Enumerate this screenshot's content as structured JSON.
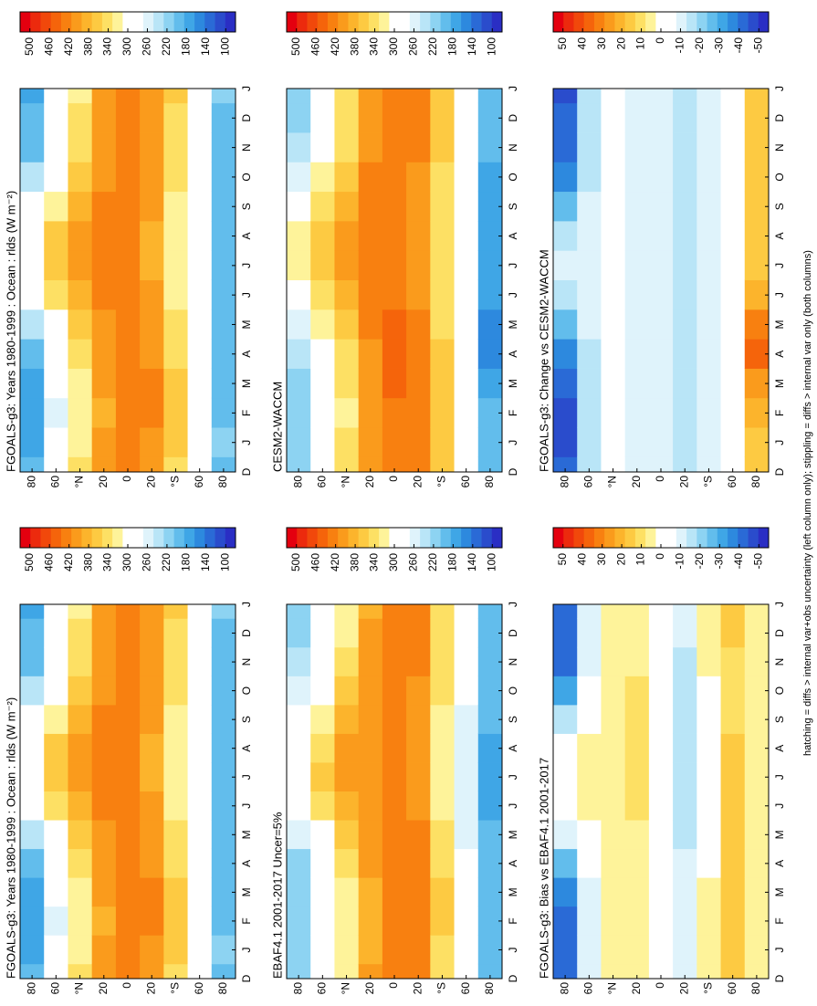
{
  "caption": "hatching = diffs > internal var+obs uncertainty (left column only); stippling = diffs > internal var only (both columns)",
  "palette": [
    "#e4000f",
    "#ec2a0d",
    "#f1480b",
    "#f5640b",
    "#f88010",
    "#fa9b1c",
    "#fcb42c",
    "#fdca42",
    "#fde064",
    "#fef39a",
    "#ffffff",
    "#ffffff",
    "#dff3fb",
    "#b9e5f7",
    "#8dd3f2",
    "#62bdec",
    "#3fa6e6",
    "#2d89de",
    "#2a6ad6",
    "#2a4ccc",
    "#2a2ec4"
  ],
  "chart_data": [
    {
      "type": "heatmap",
      "title": "FGOALS-g3: Years 1980-1999 : Ocean : rlds (W m⁻²)",
      "categories": [
        "D",
        "J",
        "F",
        "M",
        "A",
        "M",
        "J",
        "J",
        "A",
        "S",
        "O",
        "N",
        "D",
        "J"
      ],
      "y": [
        80,
        60,
        40,
        20,
        0,
        -20,
        -40,
        -60,
        -80
      ],
      "ylim": [
        -90,
        90
      ],
      "yticks": [
        80,
        60,
        {
          "value": 40,
          "label": "°N"
        },
        20,
        0,
        {
          "value": -20,
          "label": "20"
        },
        {
          "value": -40,
          "label": "°S"
        },
        {
          "value": -60,
          "label": "60"
        },
        {
          "value": -80,
          "label": "80"
        }
      ],
      "z": [
        [
          185,
          180,
          175,
          180,
          200,
          240,
          290,
          310,
          300,
          270,
          230,
          200,
          185,
          180
        ],
        [
          275,
          270,
          265,
          270,
          285,
          310,
          340,
          360,
          355,
          330,
          305,
          285,
          275,
          270
        ],
        [
          335,
          330,
          325,
          330,
          340,
          360,
          385,
          405,
          405,
          385,
          360,
          345,
          335,
          330
        ],
        [
          400,
          395,
          390,
          395,
          400,
          410,
          420,
          425,
          425,
          420,
          415,
          405,
          400,
          395
        ],
        [
          425,
          425,
          425,
          430,
          430,
          430,
          425,
          425,
          425,
          425,
          425,
          425,
          425,
          425
        ],
        [
          410,
          415,
          420,
          420,
          415,
          405,
          395,
          390,
          390,
          395,
          400,
          405,
          410,
          415
        ],
        [
          350,
          355,
          360,
          360,
          350,
          340,
          330,
          325,
          325,
          330,
          335,
          345,
          350,
          355
        ],
        [
          290,
          295,
          295,
          290,
          285,
          280,
          275,
          275,
          275,
          275,
          280,
          285,
          290,
          295
        ],
        [
          205,
          210,
          205,
          200,
          195,
          190,
          185,
          185,
          185,
          190,
          195,
          200,
          205,
          210
        ]
      ],
      "cbar_lim": [
        80,
        520
      ],
      "cbar_ticks": [
        500,
        460,
        420,
        380,
        340,
        300,
        260,
        220,
        180,
        140,
        100
      ]
    },
    {
      "type": "heatmap",
      "title": "EBAF4.1 2001-2017 Uncer=5%",
      "categories": [
        "D",
        "J",
        "F",
        "M",
        "A",
        "M",
        "J",
        "J",
        "A",
        "S",
        "O",
        "N",
        "D",
        "J"
      ],
      "y": [
        80,
        60,
        40,
        20,
        0,
        -20,
        -40,
        -60,
        -80
      ],
      "ylim": [
        -90,
        90
      ],
      "yticks": [
        80,
        60,
        {
          "value": 40,
          "label": "°N"
        },
        20,
        0,
        {
          "value": -20,
          "label": "20"
        },
        {
          "value": -40,
          "label": "°S"
        },
        {
          "value": -60,
          "label": "60"
        },
        {
          "value": -80,
          "label": "80"
        }
      ],
      "z": [
        [
          225,
          220,
          215,
          215,
          225,
          250,
          290,
          310,
          305,
          285,
          260,
          240,
          225,
          220
        ],
        [
          285,
          280,
          275,
          280,
          290,
          310,
          335,
          355,
          350,
          330,
          310,
          295,
          285,
          280
        ],
        [
          330,
          325,
          320,
          325,
          335,
          355,
          380,
          400,
          400,
          380,
          355,
          340,
          330,
          325
        ],
        [
          395,
          390,
          385,
          390,
          395,
          405,
          410,
          415,
          415,
          410,
          405,
          400,
          395,
          390
        ],
        [
          430,
          430,
          430,
          430,
          435,
          435,
          430,
          430,
          430,
          430,
          430,
          430,
          430,
          430
        ],
        [
          420,
          425,
          430,
          430,
          425,
          420,
          410,
          405,
          405,
          410,
          415,
          420,
          420,
          425
        ],
        [
          345,
          350,
          355,
          355,
          350,
          340,
          330,
          325,
          325,
          330,
          335,
          340,
          345,
          350
        ],
        [
          275,
          280,
          280,
          275,
          270,
          265,
          260,
          260,
          260,
          265,
          270,
          275,
          275,
          280
        ],
        [
          200,
          205,
          200,
          195,
          190,
          185,
          180,
          180,
          180,
          185,
          190,
          195,
          200,
          205
        ]
      ],
      "cbar_lim": [
        80,
        520
      ],
      "cbar_ticks": [
        500,
        460,
        420,
        380,
        340,
        300,
        260,
        220,
        180,
        140,
        100
      ]
    },
    {
      "type": "heatmap",
      "title": "FGOALS-g3: Bias vs EBAF4.1 2001-2017",
      "categories": [
        "D",
        "J",
        "F",
        "M",
        "A",
        "M",
        "J",
        "J",
        "A",
        "S",
        "O",
        "N",
        "D",
        "J"
      ],
      "y": [
        80,
        60,
        40,
        20,
        0,
        -20,
        -40,
        -60,
        -80
      ],
      "ylim": [
        -90,
        90
      ],
      "yticks": [
        80,
        60,
        {
          "value": 40,
          "label": "°N"
        },
        20,
        0,
        {
          "value": -20,
          "label": "20"
        },
        {
          "value": -40,
          "label": "°S"
        },
        {
          "value": -60,
          "label": "60"
        },
        {
          "value": -80,
          "label": "80"
        }
      ],
      "z": [
        [
          -40,
          -40,
          -40,
          -35,
          -25,
          -10,
          0,
          0,
          -5,
          -15,
          -30,
          -40,
          -40,
          -40
        ],
        [
          -10,
          -10,
          -10,
          -10,
          -5,
          0,
          5,
          5,
          5,
          0,
          -5,
          -10,
          -10,
          -10
        ],
        [
          5,
          5,
          5,
          5,
          5,
          5,
          5,
          5,
          5,
          5,
          5,
          5,
          5,
          5
        ],
        [
          5,
          5,
          5,
          5,
          5,
          5,
          10,
          10,
          10,
          10,
          10,
          5,
          5,
          5
        ],
        [
          -5,
          -5,
          -5,
          0,
          -5,
          -5,
          -5,
          -5,
          -5,
          -5,
          -5,
          -5,
          -5,
          -5
        ],
        [
          -10,
          -10,
          -10,
          -10,
          -10,
          -15,
          -15,
          -15,
          -15,
          -15,
          -15,
          -15,
          -10,
          -10
        ],
        [
          5,
          5,
          5,
          5,
          0,
          0,
          0,
          0,
          0,
          0,
          0,
          5,
          5,
          5
        ],
        [
          15,
          15,
          15,
          15,
          15,
          15,
          15,
          15,
          15,
          10,
          10,
          10,
          15,
          15
        ],
        [
          5,
          5,
          5,
          5,
          5,
          5,
          5,
          5,
          5,
          5,
          5,
          5,
          5,
          5
        ]
      ],
      "cbar_lim": [
        -55,
        55
      ],
      "cbar_ticks": [
        50,
        40,
        30,
        20,
        10,
        0,
        -10,
        -20,
        -30,
        -40,
        -50
      ]
    },
    {
      "type": "heatmap",
      "title": "FGOALS-g3: Years 1980-1999 : Ocean : rlds (W m⁻²)",
      "categories": [
        "D",
        "J",
        "F",
        "M",
        "A",
        "M",
        "J",
        "J",
        "A",
        "S",
        "O",
        "N",
        "D",
        "J"
      ],
      "y": [
        80,
        60,
        40,
        20,
        0,
        -20,
        -40,
        -60,
        -80
      ],
      "ylim": [
        -90,
        90
      ],
      "yticks": [
        80,
        60,
        {
          "value": 40,
          "label": "°N"
        },
        20,
        0,
        {
          "value": -20,
          "label": "20"
        },
        {
          "value": -40,
          "label": "°S"
        },
        {
          "value": -60,
          "label": "60"
        },
        {
          "value": -80,
          "label": "80"
        }
      ],
      "z": [
        [
          185,
          180,
          175,
          180,
          200,
          240,
          290,
          310,
          300,
          270,
          230,
          200,
          185,
          180
        ],
        [
          275,
          270,
          265,
          270,
          285,
          310,
          340,
          360,
          355,
          330,
          305,
          285,
          275,
          270
        ],
        [
          335,
          330,
          325,
          330,
          340,
          360,
          385,
          405,
          405,
          385,
          360,
          345,
          335,
          330
        ],
        [
          400,
          395,
          390,
          395,
          400,
          410,
          420,
          425,
          425,
          420,
          415,
          405,
          400,
          395
        ],
        [
          425,
          425,
          425,
          430,
          430,
          430,
          425,
          425,
          425,
          425,
          425,
          425,
          425,
          425
        ],
        [
          410,
          415,
          420,
          420,
          415,
          405,
          395,
          390,
          390,
          395,
          400,
          405,
          410,
          415
        ],
        [
          350,
          355,
          360,
          360,
          350,
          340,
          330,
          325,
          325,
          330,
          335,
          345,
          350,
          355
        ],
        [
          290,
          295,
          295,
          290,
          285,
          280,
          275,
          275,
          275,
          275,
          280,
          285,
          290,
          295
        ],
        [
          205,
          210,
          205,
          200,
          195,
          190,
          185,
          185,
          185,
          190,
          195,
          200,
          205,
          210
        ]
      ],
      "cbar_lim": [
        80,
        520
      ],
      "cbar_ticks": [
        500,
        460,
        420,
        380,
        340,
        300,
        260,
        220,
        180,
        140,
        100
      ]
    },
    {
      "type": "heatmap",
      "title": "CESM2-WACCM",
      "categories": [
        "D",
        "J",
        "F",
        "M",
        "A",
        "M",
        "J",
        "J",
        "A",
        "S",
        "O",
        "N",
        "D",
        "J"
      ],
      "y": [
        80,
        60,
        40,
        20,
        0,
        -20,
        -40,
        -60,
        -80
      ],
      "ylim": [
        -90,
        90
      ],
      "yticks": [
        80,
        60,
        {
          "value": 40,
          "label": "°N"
        },
        20,
        0,
        {
          "value": -20,
          "label": "20"
        },
        {
          "value": -40,
          "label": "°S"
        },
        {
          "value": -60,
          "label": "60"
        },
        {
          "value": -80,
          "label": "80"
        }
      ],
      "z": [
        [
          225,
          225,
          220,
          220,
          235,
          265,
          305,
          320,
          315,
          295,
          265,
          240,
          225,
          225
        ],
        [
          290,
          285,
          280,
          285,
          300,
          320,
          350,
          370,
          365,
          340,
          320,
          300,
          290,
          285
        ],
        [
          340,
          335,
          330,
          335,
          340,
          360,
          385,
          405,
          405,
          390,
          365,
          350,
          340,
          335
        ],
        [
          410,
          405,
          400,
          405,
          410,
          420,
          430,
          435,
          435,
          430,
          425,
          415,
          410,
          405
        ],
        [
          435,
          435,
          435,
          440,
          440,
          440,
          435,
          435,
          435,
          435,
          435,
          435,
          435,
          435
        ],
        [
          425,
          430,
          435,
          435,
          430,
          420,
          410,
          405,
          405,
          410,
          415,
          420,
          425,
          430
        ],
        [
          360,
          365,
          370,
          370,
          360,
          350,
          340,
          335,
          335,
          340,
          345,
          355,
          360,
          365
        ],
        [
          295,
          300,
          300,
          295,
          290,
          285,
          280,
          280,
          280,
          280,
          285,
          290,
          295,
          300
        ],
        [
          190,
          195,
          185,
          175,
          160,
          160,
          165,
          170,
          170,
          175,
          180,
          185,
          190,
          195
        ]
      ],
      "cbar_lim": [
        80,
        520
      ],
      "cbar_ticks": [
        500,
        460,
        420,
        380,
        340,
        300,
        260,
        220,
        180,
        140,
        100
      ]
    },
    {
      "type": "heatmap",
      "title": "FGOALS-g3: Change vs CESM2-WACCM",
      "categories": [
        "D",
        "J",
        "F",
        "M",
        "A",
        "M",
        "J",
        "J",
        "A",
        "S",
        "O",
        "N",
        "D",
        "J"
      ],
      "y": [
        80,
        60,
        40,
        20,
        0,
        -20,
        -40,
        -60,
        -80
      ],
      "ylim": [
        -90,
        90
      ],
      "yticks": [
        80,
        60,
        {
          "value": 40,
          "label": "°N"
        },
        20,
        0,
        {
          "value": -20,
          "label": "20"
        },
        {
          "value": -40,
          "label": "°S"
        },
        {
          "value": -60,
          "label": "60"
        },
        {
          "value": -80,
          "label": "80"
        }
      ],
      "z": [
        [
          -40,
          -45,
          -45,
          -40,
          -35,
          -25,
          -15,
          -10,
          -15,
          -25,
          -35,
          -40,
          -40,
          -45
        ],
        [
          -15,
          -15,
          -15,
          -15,
          -15,
          -10,
          -10,
          -10,
          -10,
          -10,
          -15,
          -15,
          -15,
          -15
        ],
        [
          -5,
          -5,
          -5,
          -5,
          0,
          0,
          0,
          0,
          0,
          -5,
          -5,
          -5,
          -5,
          -5
        ],
        [
          -10,
          -10,
          -10,
          -10,
          -10,
          -10,
          -10,
          -10,
          -10,
          -10,
          -10,
          -10,
          -10,
          -10
        ],
        [
          -10,
          -10,
          -10,
          -10,
          -10,
          -10,
          -10,
          -10,
          -10,
          -10,
          -10,
          -10,
          -10,
          -10
        ],
        [
          -15,
          -15,
          -15,
          -15,
          -15,
          -15,
          -15,
          -15,
          -15,
          -15,
          -15,
          -15,
          -15,
          -15
        ],
        [
          -10,
          -10,
          -10,
          -10,
          -10,
          -10,
          -10,
          -10,
          -10,
          -10,
          -10,
          -10,
          -10,
          -10
        ],
        [
          -5,
          -5,
          -5,
          -5,
          -5,
          -5,
          -5,
          -5,
          -5,
          -5,
          -5,
          -5,
          -5,
          -5
        ],
        [
          15,
          15,
          20,
          25,
          35,
          30,
          20,
          15,
          15,
          15,
          15,
          15,
          15,
          15
        ]
      ],
      "cbar_lim": [
        -55,
        55
      ],
      "cbar_ticks": [
        50,
        40,
        30,
        20,
        10,
        0,
        -10,
        -20,
        -30,
        -40,
        -50
      ]
    }
  ]
}
